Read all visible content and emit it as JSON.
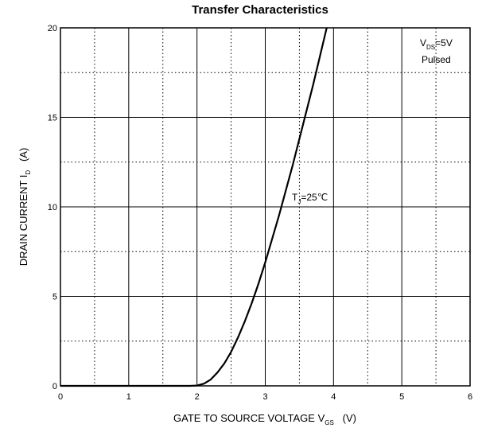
{
  "chart_data": {
    "type": "line",
    "title": "Transfer Characteristics",
    "xlabel": {
      "main": "GATE TO SOURCE VOLTAGE   V",
      "sub": "GS",
      "unit": "   (V)"
    },
    "ylabel": {
      "main": "DRAIN CURRENT   I",
      "sub": "D",
      "unit": "   (A)"
    },
    "xlim": [
      0,
      6
    ],
    "ylim": [
      0,
      20
    ],
    "x_major_ticks": [
      "0",
      "1",
      "2",
      "3",
      "4",
      "5",
      "6"
    ],
    "y_major_ticks": [
      "0",
      "5",
      "10",
      "15",
      "20"
    ],
    "grid": {
      "major": "solid",
      "minor": "dotted"
    },
    "annotations": {
      "conditions": {
        "vds_main": "V",
        "vds_sub": "DS",
        "vds_value": "=5V",
        "mode": "Pulsed"
      },
      "temperature": {
        "main": "T",
        "sub": "J",
        "value": "=25℃"
      }
    },
    "series": [
      {
        "x": [
          0.0,
          1.0,
          1.9,
          2.0,
          2.1,
          2.2,
          2.3,
          2.4,
          2.5,
          2.6,
          2.7,
          2.8,
          2.9,
          3.0,
          3.1,
          3.2,
          3.3,
          3.4,
          3.5,
          3.6,
          3.7,
          3.8,
          3.9
        ],
        "values": [
          0.0,
          0.0,
          0.0,
          0.02,
          0.12,
          0.35,
          0.75,
          1.25,
          1.9,
          2.7,
          3.6,
          4.6,
          5.7,
          6.9,
          8.2,
          9.5,
          10.9,
          12.3,
          13.8,
          15.3,
          16.8,
          18.4,
          20.0
        ]
      }
    ]
  }
}
